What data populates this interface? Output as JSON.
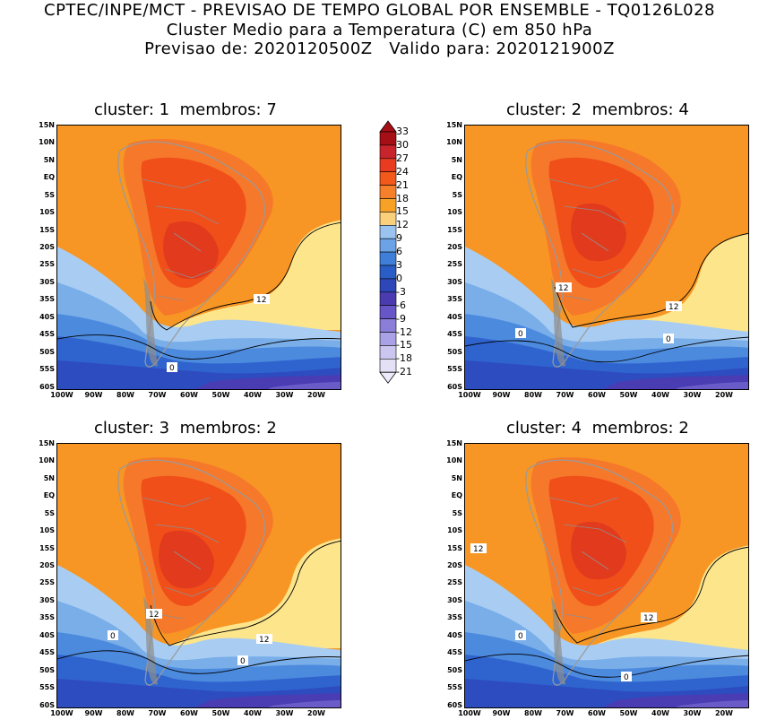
{
  "header": {
    "line1": "CPTEC/INPE/MCT - PREVISAO DE TEMPO GLOBAL POR ENSEMBLE - TQ0126L028",
    "line2": "Cluster Medio para a Temperatura (C) em 850 hPa",
    "line3": "Previsao de: 2020120500Z   Valido para: 2020121900Z"
  },
  "panels": [
    {
      "title": "cluster: 1  membros: 7",
      "contours": [
        {
          "label": "12"
        },
        {
          "label": "0"
        }
      ]
    },
    {
      "title": "cluster: 2  membros: 4",
      "contours": [
        {
          "label": "12"
        },
        {
          "label": "12"
        },
        {
          "label": "0"
        },
        {
          "label": "0"
        }
      ]
    },
    {
      "title": "cluster: 3  membros: 2",
      "contours": [
        {
          "label": "12"
        },
        {
          "label": "12"
        },
        {
          "label": "0"
        },
        {
          "label": "0"
        }
      ]
    },
    {
      "title": "cluster: 4  membros: 2",
      "contours": [
        {
          "label": "12"
        },
        {
          "label": "12"
        },
        {
          "label": "0"
        },
        {
          "label": "0"
        }
      ]
    }
  ],
  "y_ticks": [
    "15N",
    "10N",
    "5N",
    "EQ",
    "5S",
    "10S",
    "15S",
    "20S",
    "25S",
    "30S",
    "35S",
    "40S",
    "45S",
    "50S",
    "55S",
    "60S"
  ],
  "x_ticks": [
    "100W",
    "90W",
    "80W",
    "70W",
    "60W",
    "50W",
    "40W",
    "30W",
    "20W"
  ],
  "colorbar": {
    "labels": [
      "33",
      "30",
      "27",
      "24",
      "21",
      "18",
      "15",
      "12",
      "9",
      "6",
      "3",
      "0",
      "-3",
      "-6",
      "-9",
      "-12",
      "-15",
      "-18",
      "-21"
    ],
    "colors": [
      "#a50f15",
      "#c8242b",
      "#e83b20",
      "#f2591a",
      "#f6802a",
      "#f7a226",
      "#fad07a",
      "#9ac3ef",
      "#6ba3e6",
      "#3f7fd9",
      "#2a5ec6",
      "#2e47b8",
      "#4a3cb0",
      "#6656c8",
      "#8a7ed9",
      "#aaa2e6",
      "#cbc6f0",
      "#e4e1f7"
    ]
  }
}
